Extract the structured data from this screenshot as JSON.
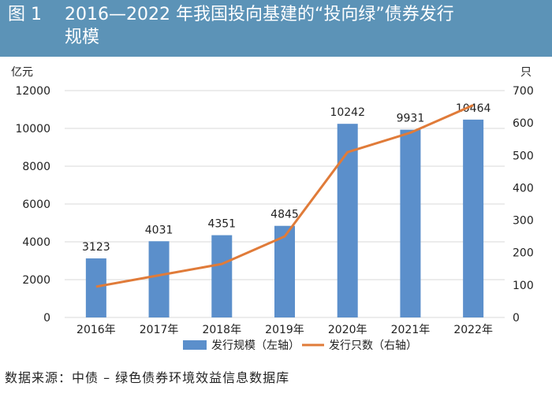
{
  "header": {
    "figure_label": "图 1",
    "title_line1": "2016—2022 年我国投向基建的“投向绿”债券发行",
    "title_line2": "规模",
    "background_color": "#5c93b7"
  },
  "chart_data": {
    "type": "bar",
    "categories": [
      "2016年",
      "2017年",
      "2018年",
      "2019年",
      "2020年",
      "2021年",
      "2022年"
    ],
    "series": [
      {
        "name": "发行规模（左轴）",
        "kind": "bar",
        "axis": "left",
        "color": "#5b8fcb",
        "values": [
          3123,
          4031,
          4351,
          4845,
          10242,
          9931,
          10464
        ],
        "labels": [
          "3123",
          "4031",
          "4351",
          "4845",
          "10242",
          "9931",
          "10464"
        ]
      },
      {
        "name": "发行只数（右轴）",
        "kind": "line",
        "axis": "right",
        "color": "#e07b39",
        "values": [
          95,
          130,
          165,
          250,
          510,
          570,
          655
        ]
      }
    ],
    "left_axis": {
      "unit": "亿元",
      "min": 0,
      "max": 12000,
      "ticks": [
        0,
        2000,
        4000,
        6000,
        8000,
        10000,
        12000
      ]
    },
    "right_axis": {
      "unit": "只",
      "min": 0,
      "max": 700,
      "ticks": [
        0,
        100,
        200,
        300,
        400,
        500,
        600,
        700
      ]
    },
    "grid": true,
    "legend_position": "bottom"
  },
  "footer": {
    "source": "数据来源：中债 – 绿色债券环境效益信息数据库"
  }
}
